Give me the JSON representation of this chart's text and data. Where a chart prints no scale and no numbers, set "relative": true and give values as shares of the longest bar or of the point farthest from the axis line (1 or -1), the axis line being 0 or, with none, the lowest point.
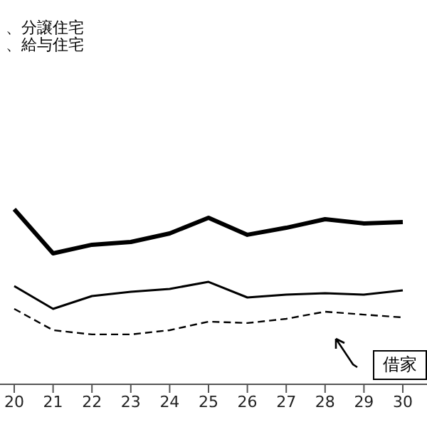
{
  "chart_data": {
    "type": "line",
    "relative": true,
    "categories": [
      "20",
      "21",
      "22",
      "23",
      "24",
      "25",
      "26",
      "27",
      "28",
      "29",
      "30"
    ],
    "series": [
      {
        "color": "#000000",
        "values": [
          1.0,
          0.748,
          0.797,
          0.813,
          0.862,
          0.951,
          0.854,
          0.894,
          0.943,
          0.919,
          0.927
        ]
      },
      {
        "color": "#000000",
        "values": [
          0.561,
          0.431,
          0.504,
          0.528,
          0.545,
          0.585,
          0.496,
          0.512,
          0.52,
          0.512,
          0.537
        ]
      },
      {
        "name": "借家",
        "color": "#000000",
        "line_style": "dashed",
        "values": [
          0.431,
          0.309,
          0.285,
          0.285,
          0.309,
          0.358,
          0.35,
          0.374,
          0.415,
          0.398,
          0.382
        ]
      }
    ],
    "annotations": [
      "、分譲住宅",
      "、給与住宅"
    ],
    "marker": "none",
    "legend": "bottom right"
  }
}
